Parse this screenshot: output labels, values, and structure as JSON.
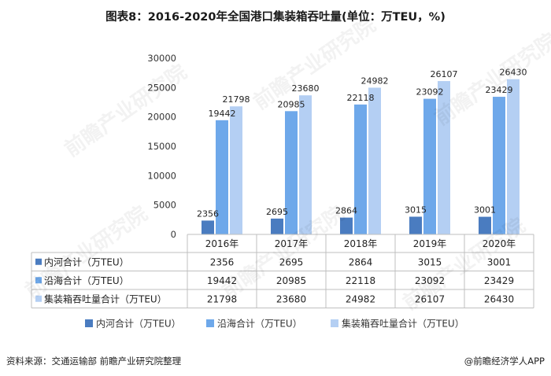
{
  "chart_data": {
    "type": "bar",
    "title": "图表8：2016-2020年全国港口集装箱吞吐量(单位：万TEU，%)",
    "categories": [
      "2016年",
      "2017年",
      "2018年",
      "2019年",
      "2020年"
    ],
    "series": [
      {
        "name": "内河合计（万TEU）",
        "values": [
          2356,
          2695,
          2864,
          3015,
          3001
        ],
        "color": "#4a7cc0"
      },
      {
        "name": "沿海合计（万TEU）",
        "values": [
          19442,
          20985,
          22118,
          23092,
          23429
        ],
        "color": "#6ea8ea"
      },
      {
        "name": "集装箱吞吐量合计（万TEU）",
        "values": [
          21798,
          23680,
          24982,
          26107,
          26430
        ],
        "color": "#b4cff3"
      }
    ],
    "y_ticks": [
      "0",
      "5000",
      "10000",
      "15000",
      "20000",
      "25000",
      "30000"
    ],
    "ylim": [
      0,
      30000
    ],
    "grid": false,
    "legend_position": "bottom",
    "has_data_table": true
  },
  "footer": {
    "source": "资料来源：交通运输部 前瞻产业研究院整理",
    "brand": "@前瞻经济学人APP"
  },
  "watermark": {
    "text": "前瞻产业研究院"
  }
}
